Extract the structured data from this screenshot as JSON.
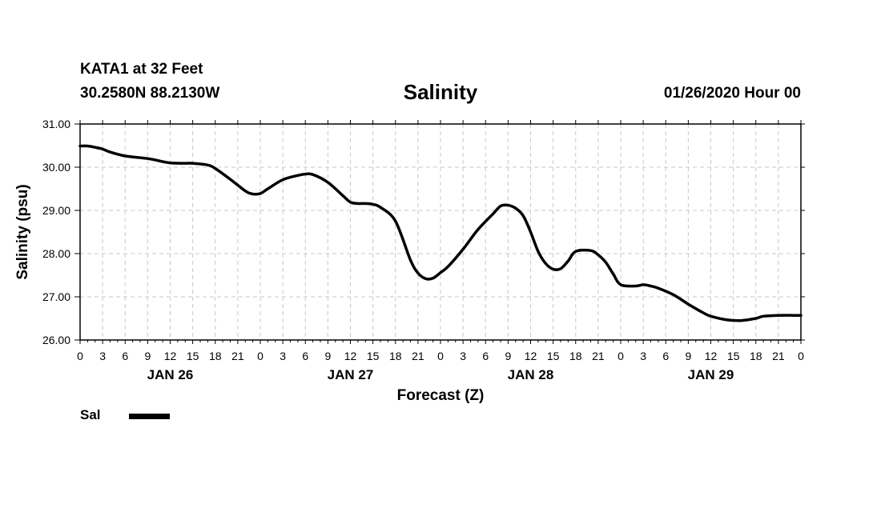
{
  "header": {
    "station": "KATA1 at 32 Feet",
    "coords": "30.2580N 88.2130W",
    "title": "Salinity",
    "issued": "01/26/2020 Hour 00"
  },
  "chart_data": {
    "type": "line",
    "title": "Salinity",
    "xlabel": "Forecast (Z)",
    "ylabel": "Salinity (psu)",
    "x_unit": "hours from 01/26/2020 00Z",
    "xlim": [
      0,
      96
    ],
    "ylim": [
      26.0,
      31.0
    ],
    "y_ticks": [
      "26.00",
      "27.00",
      "28.00",
      "29.00",
      "30.00",
      "31.00"
    ],
    "x_tick_labels": [
      "0",
      "3",
      "6",
      "9",
      "12",
      "15",
      "18",
      "21",
      "0",
      "3",
      "6",
      "9",
      "12",
      "15",
      "18",
      "21",
      "0",
      "3",
      "6",
      "9",
      "12",
      "15",
      "18",
      "21",
      "0",
      "3",
      "6",
      "9",
      "12",
      "15",
      "18",
      "21",
      "0"
    ],
    "day_labels": [
      {
        "label": "JAN 26",
        "hour": 12
      },
      {
        "label": "JAN 27",
        "hour": 36
      },
      {
        "label": "JAN 28",
        "hour": 60
      },
      {
        "label": "JAN 29",
        "hour": 84
      }
    ],
    "grid": true,
    "legend": "bottom-left",
    "series": [
      {
        "name": "Sal",
        "color": "#000000",
        "x": [
          0,
          1,
          2,
          3,
          4,
          6,
          9,
          11,
          12,
          14,
          15,
          17,
          18,
          20,
          22,
          23,
          24,
          25,
          27,
          29,
          30,
          31,
          33,
          35,
          36,
          37,
          38,
          39,
          40,
          42,
          44,
          45,
          46,
          47,
          48,
          49,
          51,
          53,
          55,
          56,
          57,
          58,
          59,
          60,
          61,
          62,
          63,
          64,
          65,
          66,
          68,
          69,
          70,
          71,
          72,
          74,
          75,
          76,
          77,
          79,
          81,
          83,
          84,
          86,
          88,
          90,
          91,
          93,
          95,
          96
        ],
        "y": [
          30.49,
          30.49,
          30.46,
          30.42,
          30.35,
          30.26,
          30.2,
          30.13,
          30.1,
          30.09,
          30.09,
          30.05,
          29.97,
          29.72,
          29.45,
          29.38,
          29.39,
          29.5,
          29.71,
          29.81,
          29.84,
          29.83,
          29.65,
          29.34,
          29.19,
          29.16,
          29.16,
          29.14,
          29.07,
          28.75,
          27.85,
          27.55,
          27.42,
          27.43,
          27.56,
          27.7,
          28.1,
          28.56,
          28.92,
          29.1,
          29.12,
          29.05,
          28.88,
          28.5,
          28.05,
          27.77,
          27.64,
          27.65,
          27.83,
          28.05,
          28.07,
          27.97,
          27.8,
          27.53,
          27.28,
          27.25,
          27.28,
          27.25,
          27.2,
          27.05,
          26.83,
          26.63,
          26.55,
          26.47,
          26.45,
          26.5,
          26.55,
          26.57,
          26.57,
          26.57
        ]
      }
    ]
  },
  "legend": {
    "label": "Sal"
  }
}
